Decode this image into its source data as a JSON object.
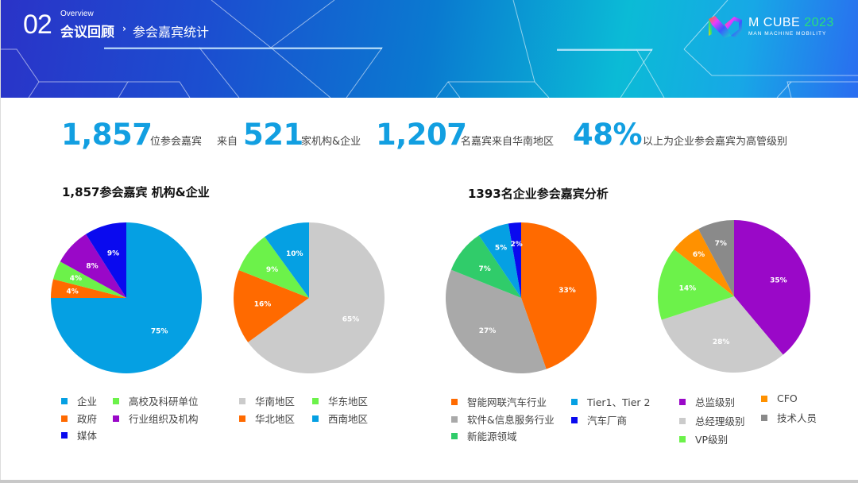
{
  "header": {
    "section_number": "02",
    "overview_label": "Overview",
    "section_title": "会议回顾",
    "arrow": "›",
    "subtitle": "参会嘉宾统计",
    "logo": {
      "title": "M CUBE",
      "year": "2023",
      "subtitle": "MAN MACHINE MOBILITY"
    }
  },
  "stats": [
    {
      "value": "1,857",
      "label_before": "",
      "label_after": "位参会嘉宾"
    },
    {
      "value": "521",
      "label_before": "来自",
      "label_after": "家机构&企业"
    },
    {
      "value": "1,207",
      "label_before": "",
      "label_after": "名嘉宾来自华南地区"
    },
    {
      "value": "48%",
      "label_before": "",
      "label_after": "以上为企业参会嘉宾为高管级别"
    }
  ],
  "sections": {
    "left_title": "1,857参会嘉宾 机构&企业",
    "right_title": "1393名企业参会嘉宾分析"
  },
  "colors": {
    "accent": "#129fe1",
    "blue": "#05a0e3",
    "orange": "#ff6a00",
    "green": "#6cf24a",
    "purple": "#9a08c8",
    "navy": "#0a0aef",
    "lightgray": "#cbcbcb",
    "gray": "#a9a9a9",
    "darkgray": "#8a8a8a",
    "emerald": "#30cc6a",
    "amber": "#ff9100"
  },
  "chart_data": [
    {
      "type": "pie",
      "title": "1,857参会嘉宾 机构&企业 (按机构类型)",
      "categories": [
        "企业",
        "政府",
        "高校及科研单位",
        "行业组织及机构",
        "媒体"
      ],
      "values": [
        75,
        4,
        4,
        8,
        9
      ],
      "labels": [
        "75%",
        "4%",
        "4%",
        "8%",
        "9%"
      ],
      "colors": [
        "#05a0e3",
        "#ff6a00",
        "#6cf24a",
        "#9a08c8",
        "#0a0aef"
      ],
      "legend": [
        "企业",
        "高校及科研单位",
        "政府",
        "行业组织及机构",
        "媒体"
      ],
      "legend_colors": [
        "#05a0e3",
        "#6cf24a",
        "#ff6a00",
        "#9a08c8",
        "#0a0aef"
      ],
      "legend_position": "bottom"
    },
    {
      "type": "pie",
      "title": "1,857参会嘉宾 机构&企业 (按地区)",
      "categories": [
        "华南地区",
        "华北地区",
        "华东地区",
        "西南地区"
      ],
      "values": [
        65,
        16,
        9,
        10
      ],
      "labels": [
        "65%",
        "16%",
        "9%",
        "10%"
      ],
      "colors": [
        "#cbcbcb",
        "#ff6a00",
        "#6cf24a",
        "#05a0e3"
      ],
      "legend": [
        "华南地区",
        "华东地区",
        "华北地区",
        "西南地区"
      ],
      "legend_colors": [
        "#cbcbcb",
        "#6cf24a",
        "#ff6a00",
        "#05a0e3"
      ],
      "legend_position": "bottom"
    },
    {
      "type": "pie",
      "title": "1393名企业参会嘉宾分析 (按行业)",
      "categories": [
        "智能网联汽车行业",
        "软件&信息服务行业",
        "新能源领域",
        "Tier1、Tier 2",
        "汽车厂商"
      ],
      "values": [
        33,
        27,
        7,
        5,
        2
      ],
      "labels": [
        "33%",
        "27%",
        "7%",
        "5%",
        "2%"
      ],
      "colors": [
        "#ff6a00",
        "#a9a9a9",
        "#30cc6a",
        "#05a0e3",
        "#0a0aef"
      ],
      "legend": [
        "智能网联汽车行业",
        "Tier1、Tier 2",
        "软件&信息服务行业",
        "汽车厂商",
        "新能源领域"
      ],
      "legend_colors": [
        "#ff6a00",
        "#05a0e3",
        "#a9a9a9",
        "#0a0aef",
        "#30cc6a"
      ],
      "legend_position": "bottom"
    },
    {
      "type": "pie",
      "title": "1393名企业参会嘉宾分析 (按级别)",
      "categories": [
        "总监级别",
        "总经理级别",
        "VP级别",
        "CFO",
        "技术人员"
      ],
      "values": [
        35,
        28,
        14,
        6,
        7
      ],
      "labels": [
        "35%",
        "28%",
        "14%",
        "6%",
        "7%"
      ],
      "colors": [
        "#9a08c8",
        "#cbcbcb",
        "#6cf24a",
        "#ff9100",
        "#8a8a8a"
      ],
      "legend": [
        "总监级别",
        "CFO",
        "总经理级别",
        "技术人员",
        "VP级别"
      ],
      "legend_colors": [
        "#9a08c8",
        "#ff9100",
        "#cbcbcb",
        "#8a8a8a",
        "#6cf24a"
      ],
      "legend_position": "bottom"
    }
  ]
}
